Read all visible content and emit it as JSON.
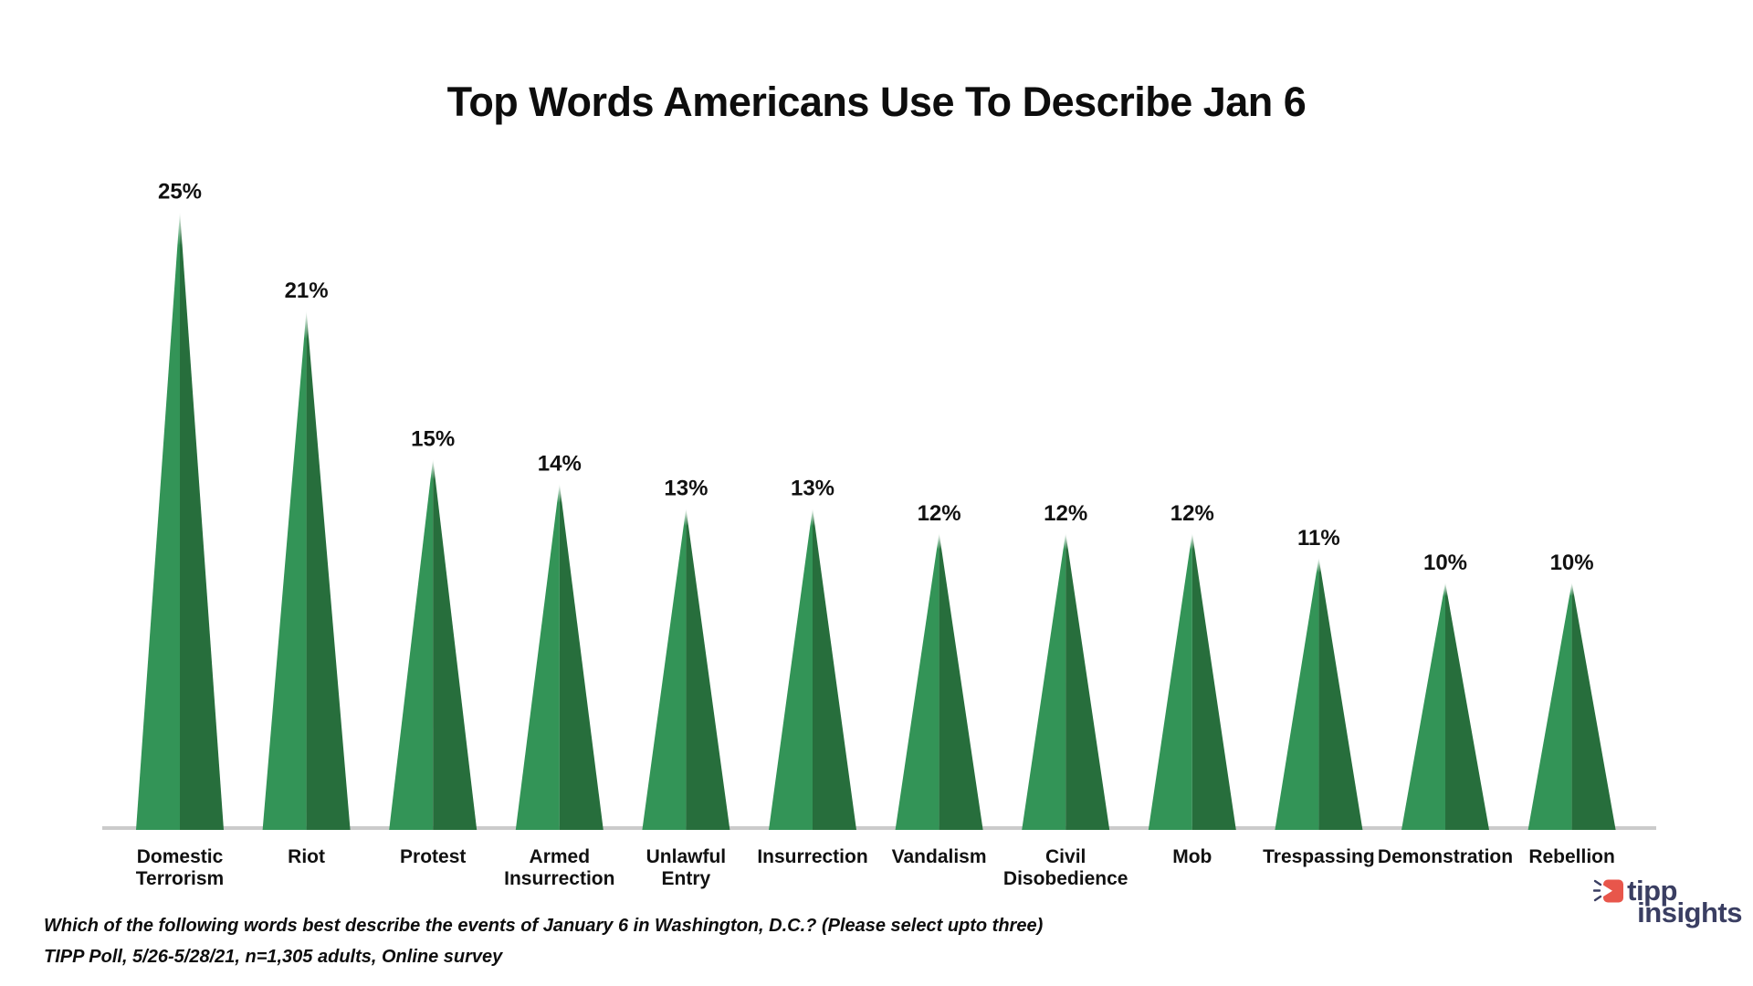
{
  "page": {
    "background": "#ffffff"
  },
  "chart_data": {
    "type": "bar",
    "variant": "triangle-spike",
    "title": "Top Words Americans Use To Describe Jan 6",
    "categories": [
      "Domestic Terrorism",
      "Riot",
      "Protest",
      "Armed Insurrection",
      "Unlawful Entry",
      "Insurrection",
      "Vandalism",
      "Civil Disobedience",
      "Mob",
      "Trespassing",
      "Demonstration",
      "Rebellion"
    ],
    "values": [
      25,
      21,
      15,
      14,
      13,
      13,
      12,
      12,
      12,
      11,
      10,
      10
    ],
    "value_suffix": "%",
    "value_labels": [
      "25%",
      "21%",
      "15%",
      "14%",
      "13%",
      "13%",
      "12%",
      "12%",
      "12%",
      "11%",
      "10%",
      "10%"
    ],
    "xlabel": "",
    "ylabel": "",
    "ylim": [
      0,
      25
    ],
    "grid": false,
    "legend": false
  },
  "colors": {
    "bar_light": "#339457",
    "bar_dark": "#276E3C",
    "axis_line": "#CBCBCB",
    "text": "#111111",
    "logo_navy": "#3A3E62",
    "logo_red": "#E8564B"
  },
  "footnotes": {
    "line1": "Which of the following words best describe the events of January 6 in Washington, D.C.? (Please select upto three)",
    "line2": "TIPP Poll, 5/26-5/28/21, n=1,305 adults, Online survey"
  },
  "logo": {
    "line1": "tipp",
    "line2": "insights"
  }
}
